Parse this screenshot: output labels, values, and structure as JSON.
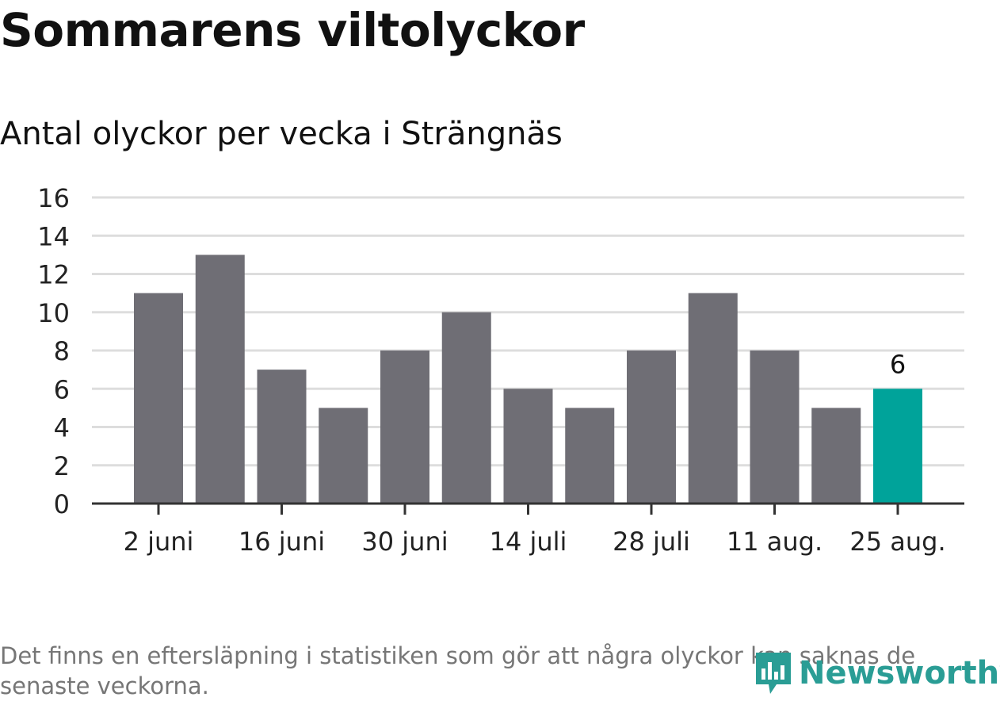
{
  "header": {
    "title": "Sommarens viltolyckor",
    "subtitle": "Antal olyckor per vecka i Strängnäs"
  },
  "footnote": "Det finns en eftersläpning i statistiken som gör att några olyckor kan saknas de senaste veckorna.",
  "brand": {
    "name": "Newsworthy",
    "icon": "newsworthy-logo-icon",
    "color": "#2a9d95"
  },
  "chart_data": {
    "type": "bar",
    "title": "Antal olyckor per vecka i Strängnäs",
    "categories": [
      "2 juni",
      "",
      "16 juni",
      "",
      "30 juni",
      "",
      "14 juli",
      "",
      "28 juli",
      "",
      "11 aug.",
      "",
      "25 aug."
    ],
    "values": [
      11,
      13,
      7,
      5,
      8,
      10,
      6,
      5,
      8,
      11,
      8,
      5,
      6
    ],
    "ylim": [
      0,
      16
    ],
    "yticks": [
      "0",
      "2",
      "4",
      "6",
      "8",
      "10",
      "12",
      "14",
      "16"
    ],
    "grid": true,
    "highlight_index": 12,
    "data_labels": [
      {
        "index": 12,
        "text": "6"
      }
    ],
    "colors": {
      "bar": "#6f6e75",
      "highlight": "#00a39a",
      "grid": "#dddddd",
      "axis": "#333333"
    }
  }
}
